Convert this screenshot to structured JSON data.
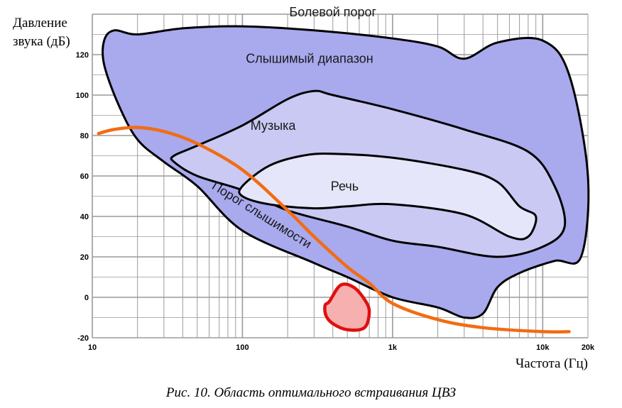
{
  "caption": "Рис. 10. Область оптимального встраивания ЦВЗ",
  "chart_data": {
    "type": "area",
    "title": "",
    "ylabel_lines": [
      "Давление",
      "звука (дБ)"
    ],
    "xlabel": "Частота (Гц)",
    "xscale": "log",
    "xlim": [
      10,
      20000
    ],
    "ylim": [
      -20,
      140
    ],
    "x_ticks": [
      {
        "value": 10,
        "label": "10"
      },
      {
        "value": 100,
        "label": "100"
      },
      {
        "value": 1000,
        "label": "1k"
      },
      {
        "value": 10000,
        "label": "10k"
      },
      {
        "value": 20000,
        "label": "20k"
      }
    ],
    "y_ticks": [
      {
        "value": -20,
        "label": "-20"
      },
      {
        "value": 0,
        "label": "0"
      },
      {
        "value": 20,
        "label": "20"
      },
      {
        "value": 40,
        "label": "40"
      },
      {
        "value": 60,
        "label": "60"
      },
      {
        "value": 80,
        "label": "80"
      },
      {
        "value": 100,
        "label": "100"
      },
      {
        "value": 120,
        "label": "120"
      }
    ],
    "grid": true,
    "colors": {
      "audible": "#a9a9ee",
      "music": "#c9c9f4",
      "speech": "#e6e6fb",
      "outline": "#000000",
      "threshold_curve": "#f26c12",
      "embedding_region_fill": "#f6b0b0",
      "embedding_region_stroke": "#e01010",
      "grid": "#9a9a9a"
    },
    "regions": [
      {
        "id": "audible",
        "label": "Слышимый диапазон",
        "label_at": [
          280,
          118
        ],
        "points": [
          [
            12,
            127
          ],
          [
            14,
            132
          ],
          [
            20,
            130
          ],
          [
            40,
            133
          ],
          [
            100,
            134
          ],
          [
            300,
            132
          ],
          [
            1000,
            128
          ],
          [
            2000,
            124
          ],
          [
            3000,
            118
          ],
          [
            5000,
            126
          ],
          [
            10000,
            127
          ],
          [
            15000,
            110
          ],
          [
            20000,
            60
          ],
          [
            18000,
            20
          ],
          [
            12000,
            18
          ],
          [
            7000,
            12
          ],
          [
            5000,
            5
          ],
          [
            4000,
            -8
          ],
          [
            3000,
            -10
          ],
          [
            2000,
            -5
          ],
          [
            1000,
            0
          ],
          [
            500,
            10
          ],
          [
            300,
            17
          ],
          [
            100,
            33
          ],
          [
            50,
            55
          ],
          [
            30,
            67
          ],
          [
            20,
            78
          ],
          [
            15,
            95
          ],
          [
            12,
            115
          ]
        ]
      },
      {
        "id": "music",
        "label": "Музыка",
        "label_at": [
          160,
          85
        ],
        "points": [
          [
            35,
            70
          ],
          [
            50,
            75
          ],
          [
            100,
            85
          ],
          [
            200,
            98
          ],
          [
            300,
            102
          ],
          [
            400,
            100
          ],
          [
            1000,
            93
          ],
          [
            3000,
            83
          ],
          [
            8000,
            72
          ],
          [
            12000,
            55
          ],
          [
            14000,
            35
          ],
          [
            10000,
            25
          ],
          [
            5000,
            20
          ],
          [
            2000,
            25
          ],
          [
            1000,
            28
          ],
          [
            500,
            35
          ],
          [
            200,
            43
          ],
          [
            100,
            53
          ],
          [
            50,
            60
          ],
          [
            35,
            67
          ]
        ]
      },
      {
        "id": "speech",
        "label": "Речь",
        "label_at": [
          480,
          55
        ],
        "points": [
          [
            100,
            55
          ],
          [
            150,
            65
          ],
          [
            250,
            70
          ],
          [
            400,
            71
          ],
          [
            1000,
            69
          ],
          [
            3000,
            63
          ],
          [
            5000,
            57
          ],
          [
            7000,
            45
          ],
          [
            9000,
            40
          ],
          [
            8000,
            30
          ],
          [
            6000,
            30
          ],
          [
            3000,
            41
          ],
          [
            1000,
            46
          ],
          [
            500,
            45
          ],
          [
            300,
            44
          ],
          [
            150,
            46
          ],
          [
            100,
            50
          ]
        ]
      }
    ],
    "annotations": [
      {
        "text": "Болевой порог",
        "x": 400,
        "y": 139
      },
      {
        "text": "Порог слышимости",
        "x": 130,
        "y": 39,
        "rotate": 32
      }
    ],
    "series": [
      {
        "name": "",
        "type": "line",
        "points": [
          [
            11,
            81
          ],
          [
            14,
            83
          ],
          [
            20,
            84
          ],
          [
            30,
            82
          ],
          [
            50,
            76
          ],
          [
            100,
            63
          ],
          [
            200,
            43
          ],
          [
            300,
            30
          ],
          [
            500,
            15
          ],
          [
            700,
            7
          ],
          [
            1000,
            -3
          ],
          [
            2000,
            -11
          ],
          [
            4000,
            -15
          ],
          [
            10000,
            -17
          ],
          [
            15000,
            -17
          ]
        ]
      }
    ],
    "highlight": {
      "shape": "blob",
      "points": [
        [
          380,
          -2
        ],
        [
          450,
          6
        ],
        [
          550,
          5
        ],
        [
          650,
          -1
        ],
        [
          700,
          -7
        ],
        [
          650,
          -15
        ],
        [
          500,
          -16
        ],
        [
          400,
          -13
        ],
        [
          360,
          -9
        ],
        [
          355,
          -4
        ]
      ]
    }
  }
}
